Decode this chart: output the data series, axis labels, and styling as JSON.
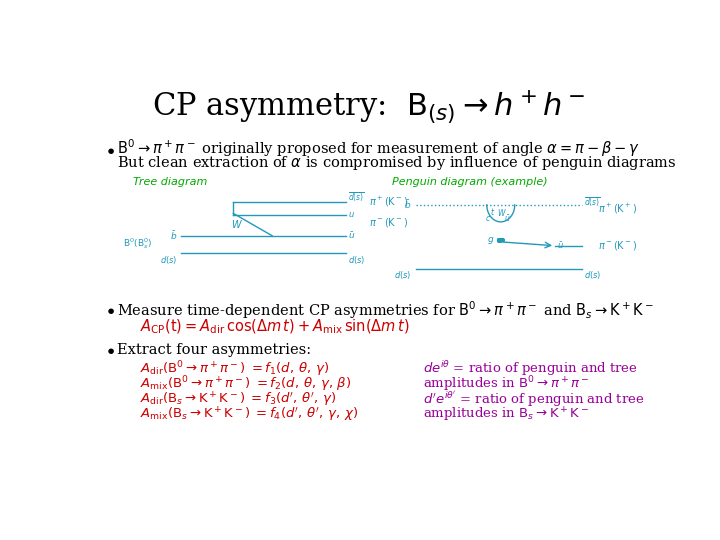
{
  "title": "CP asymmetry:  $\\mathrm{B}_{(s)} \\rightarrow h^+h^-$",
  "title_fontsize": 22,
  "title_color": "#000000",
  "bg_color": "#ffffff",
  "bullet1_line1": "$\\mathrm{B}^0 \\rightarrow \\pi^+\\pi^-$ originally proposed for measurement of angle $\\alpha = \\pi - \\beta - \\gamma$",
  "bullet1_line2": "But clean extraction of $\\alpha$ is compromised by influence of penguin diagrams",
  "bullet1_color": "#000000",
  "bullet1_fontsize": 10.5,
  "tree_label": "Tree diagram",
  "penguin_label": "Penguin diagram (example)",
  "diagram_label_color": "#00aa00",
  "diagram_label_fontsize": 8,
  "diagram_color": "#2299bb",
  "bullet2_line1": "Measure time-dependent CP asymmetries for $\\mathrm{B}^0 \\rightarrow \\pi^+\\pi^-$ and $\\mathrm{B}_s \\rightarrow \\mathrm{K}^+\\mathrm{K}^-$",
  "bullet2_color": "#000000",
  "bullet2_fontsize": 10.5,
  "acp_formula": "$A_{\\mathrm{CP}}(\\mathrm{t}) = A_{\\mathrm{dir}}\\,\\cos(\\Delta m\\,t) + A_{\\mathrm{mix}}\\,\\sin(\\Delta m\\,t)$",
  "acp_color": "#cc0000",
  "acp_fontsize": 10.5,
  "bullet3_line1": "Extract four asymmetries:",
  "bullet3_color": "#000000",
  "bullet3_fontsize": 10.5,
  "eq1": "$A_{\\mathrm{dir}}(\\mathrm{B}^0 \\rightarrow \\pi^+\\pi^-)\\;= f_1(d,\\,\\theta,\\,\\gamma)$",
  "eq2": "$A_{\\mathrm{mix}}(\\mathrm{B}^0 \\rightarrow \\pi^+\\pi^-)\\;= f_2(d,\\,\\theta,\\,\\gamma,\\,\\beta)$",
  "eq3": "$A_{\\mathrm{dir}}(\\mathrm{B}_s \\rightarrow \\mathrm{K}^+\\mathrm{K}^-)\\;= f_3(d',\\,\\theta',\\,\\gamma)$",
  "eq4": "$A_{\\mathrm{mix}}(\\mathrm{B}_s \\rightarrow \\mathrm{K}^+\\mathrm{K}^-)\\;= f_4(d',\\,\\theta',\\,\\gamma,\\,\\chi)$",
  "eq_color": "#cc0000",
  "eq_fontsize": 9.5,
  "rhs1": "$de^{i\\theta}$ = ratio of penguin and tree",
  "rhs2": "amplitudes in $\\mathrm{B}^0 \\rightarrow \\pi^+\\pi^-$",
  "rhs3": "$d'e^{i\\theta'}$ = ratio of penguin and tree",
  "rhs4": "amplitudes in $\\mathrm{B}_s \\rightarrow \\mathrm{K}^+\\mathrm{K}^-$",
  "rhs_color": "#990099",
  "rhs_fontsize": 9.5
}
